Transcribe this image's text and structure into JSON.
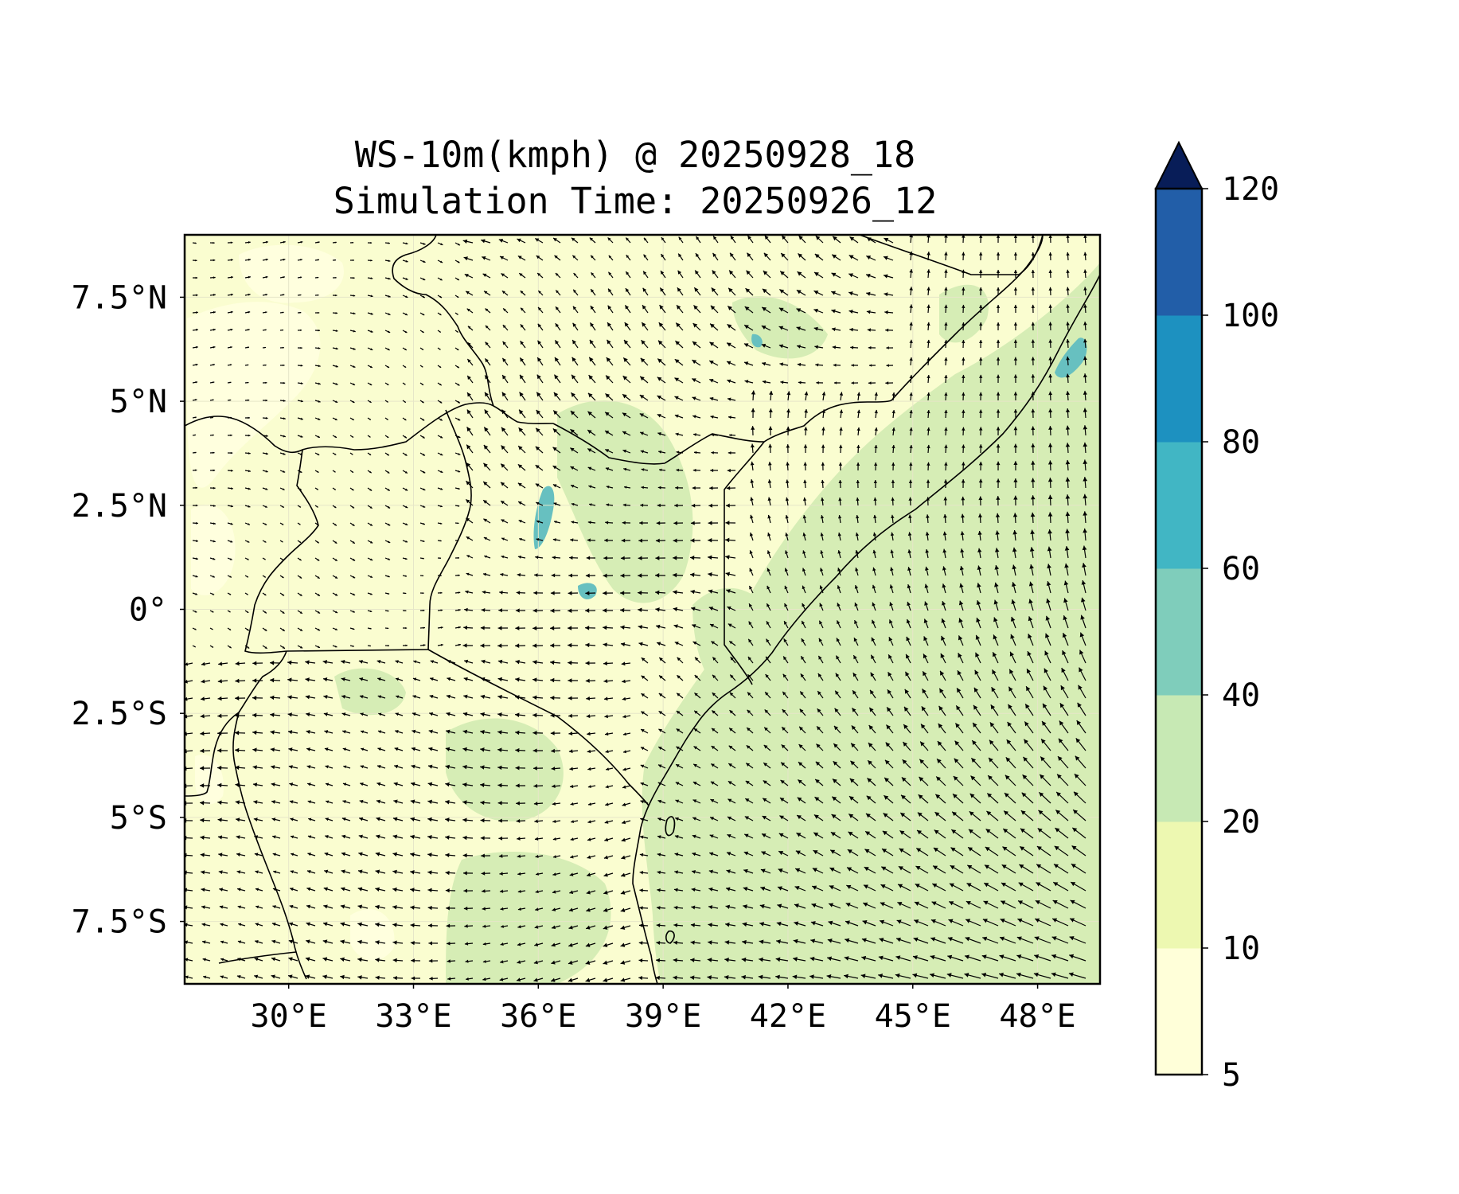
{
  "title_line1": "WS-10m(kmph) @ 20250928_18",
  "title_line2": "Simulation Time: 20250926_12",
  "map": {
    "lon_range": [
      27.5,
      49.5
    ],
    "lat_range": [
      -9.0,
      9.0
    ],
    "x_ticks": [
      {
        "value": 30,
        "label": "30°E"
      },
      {
        "value": 33,
        "label": "33°E"
      },
      {
        "value": 36,
        "label": "36°E"
      },
      {
        "value": 39,
        "label": "39°E"
      },
      {
        "value": 42,
        "label": "42°E"
      },
      {
        "value": 45,
        "label": "45°E"
      },
      {
        "value": 48,
        "label": "48°E"
      }
    ],
    "y_ticks": [
      {
        "value": 7.5,
        "label": "7.5°N"
      },
      {
        "value": 5,
        "label": "5°N"
      },
      {
        "value": 2.5,
        "label": "2.5°N"
      },
      {
        "value": 0,
        "label": "0°"
      },
      {
        "value": -2.5,
        "label": "2.5°S"
      },
      {
        "value": -5,
        "label": "5°S"
      },
      {
        "value": -7.5,
        "label": "7.5°S"
      }
    ],
    "land_color": "#fafdd0",
    "low_wind_color": "#ffffde",
    "moderate_wind_color": "#d6edb5",
    "lake_wind_color": "#67c0c0"
  },
  "colorbar": {
    "levels": [
      5,
      10,
      20,
      40,
      60,
      80,
      100,
      120
    ],
    "labels": [
      "5",
      "10",
      "20",
      "40",
      "60",
      "80",
      "100",
      "120"
    ],
    "colors": [
      "#ffffd9",
      "#edf8b1",
      "#c7e9b4",
      "#7fcdbb",
      "#41b6c4",
      "#1d91c0",
      "#225ea8",
      "#0c2c84"
    ],
    "extend": "max",
    "extend_color": "#081d58"
  }
}
